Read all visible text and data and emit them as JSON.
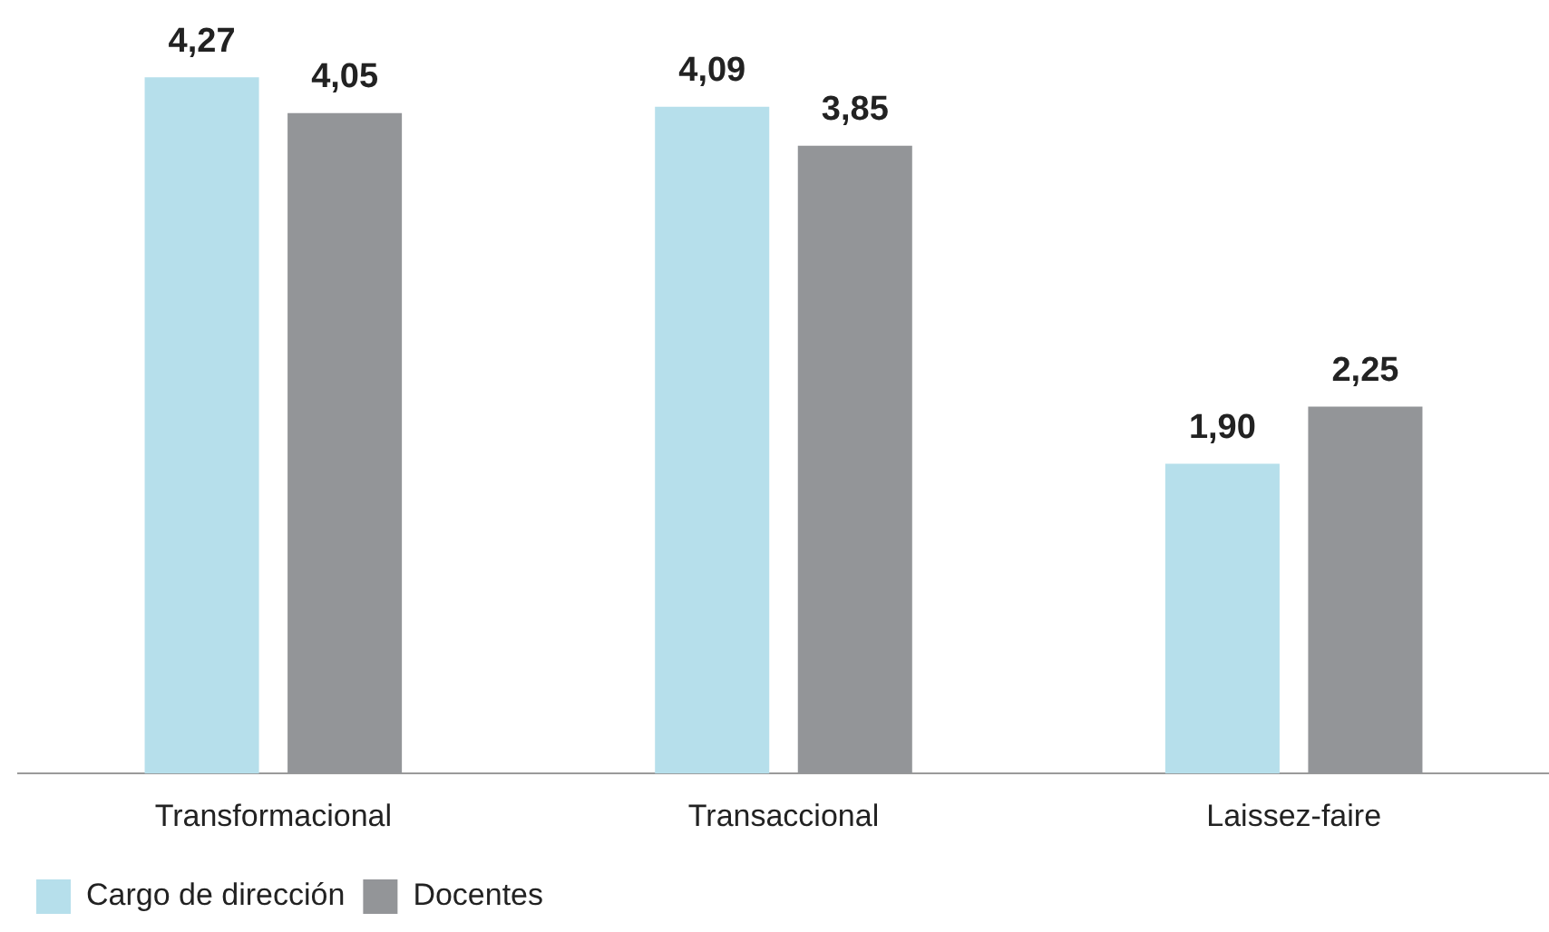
{
  "chart_data": {
    "type": "bar",
    "categories": [
      "Transformacional",
      "Transaccional",
      "Laissez-faire"
    ],
    "grid": false,
    "legend": "bottom left",
    "series": [
      {
        "name": "Cargo de dirección",
        "color": "#b6dfeb",
        "values": [
          4.27,
          4.09,
          1.9
        ],
        "value_labels": [
          "4,27",
          "4,09",
          "1,90"
        ]
      },
      {
        "name": "Docentes",
        "color": "#939598",
        "values": [
          4.05,
          3.85,
          2.25
        ],
        "value_labels": [
          "4,05",
          "3,85",
          "2,25"
        ]
      }
    ]
  }
}
